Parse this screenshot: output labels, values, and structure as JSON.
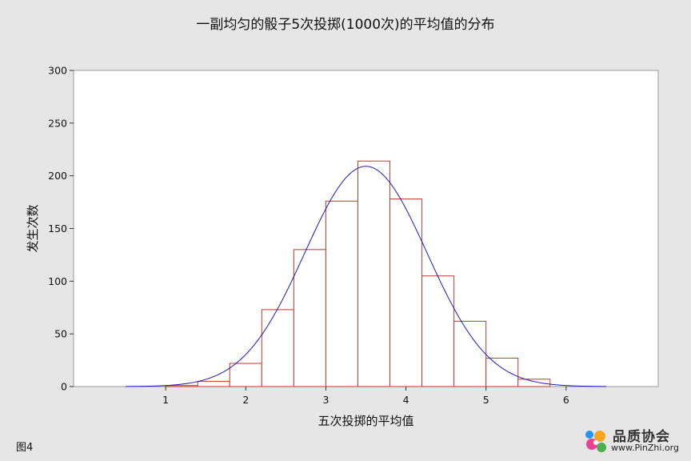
{
  "chart_data": {
    "type": "bar",
    "title": "一副均匀的骰子5次投掷(1000次)的平均值的分布",
    "xlabel": "五次投掷的平均值",
    "ylabel": "发生次数",
    "xlim": [
      -0.15,
      7.15
    ],
    "ylim": [
      0,
      300
    ],
    "xticks": [
      1,
      2,
      3,
      4,
      5,
      6
    ],
    "yticks": [
      0,
      50,
      100,
      150,
      200,
      250,
      300
    ],
    "bin_width": 0.4,
    "bins": [
      {
        "x_start": 1.0,
        "x_end": 1.4,
        "value": 1
      },
      {
        "x_start": 1.4,
        "x_end": 1.8,
        "value": 5
      },
      {
        "x_start": 1.8,
        "x_end": 2.2,
        "value": 22
      },
      {
        "x_start": 2.2,
        "x_end": 2.6,
        "value": 73
      },
      {
        "x_start": 2.6,
        "x_end": 3.0,
        "value": 130
      },
      {
        "x_start": 3.0,
        "x_end": 3.4,
        "value": 176
      },
      {
        "x_start": 3.4,
        "x_end": 3.8,
        "value": 214
      },
      {
        "x_start": 3.8,
        "x_end": 4.2,
        "value": 178
      },
      {
        "x_start": 4.2,
        "x_end": 4.6,
        "value": 105
      },
      {
        "x_start": 4.6,
        "x_end": 5.0,
        "value": 62
      },
      {
        "x_start": 5.0,
        "x_end": 5.4,
        "value": 27
      },
      {
        "x_start": 5.4,
        "x_end": 5.8,
        "value": 7
      }
    ],
    "fit_curve": {
      "type": "normal",
      "mean": 3.5,
      "sd": 0.764,
      "peak": 209,
      "range": [
        0.5,
        6.5
      ]
    },
    "grid": false,
    "legend": "none",
    "colors": {
      "bar_edge": "#c0392b",
      "bar_fill": "#ffffff",
      "curve": "#1a1ab4",
      "plot_bg": "#ffffff",
      "page_bg": "#e6e6e6"
    }
  },
  "figure_label": "图4",
  "watermark": {
    "brand": "品质协会",
    "site": "www.PinZhi.org"
  }
}
